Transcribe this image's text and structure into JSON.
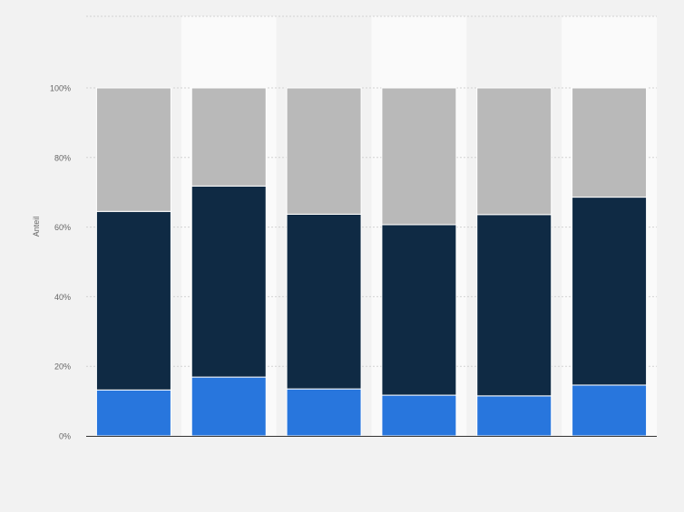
{
  "chart_data": {
    "type": "bar",
    "stacked": true,
    "percent": true,
    "ylabel": "Anteil",
    "ylim": [
      0,
      100
    ],
    "y_ticks": [
      "0%",
      "20%",
      "40%",
      "60%",
      "80%",
      "100%"
    ],
    "y_tick_values": [
      0,
      20,
      40,
      60,
      80,
      100
    ],
    "categories": [
      "",
      "",
      "",
      "",
      "",
      ""
    ],
    "grid": true,
    "legend": "none",
    "series": [
      {
        "values": [
          13.2,
          16.9,
          13.5,
          11.7,
          11.5,
          14.6
        ],
        "color": "#2876dd"
      },
      {
        "values": [
          51.3,
          54.9,
          50.2,
          49.0,
          52.1,
          54.0
        ],
        "color": "#0f2a44"
      },
      {
        "values": [
          35.5,
          28.2,
          36.3,
          39.3,
          36.4,
          31.4
        ],
        "color": "#b9b9b9"
      }
    ],
    "colors": {
      "background": "#f2f2f2",
      "band": "#fafafa",
      "grid": "#d2d2d2",
      "axis": "#333333",
      "tick_text": "#666666"
    }
  }
}
